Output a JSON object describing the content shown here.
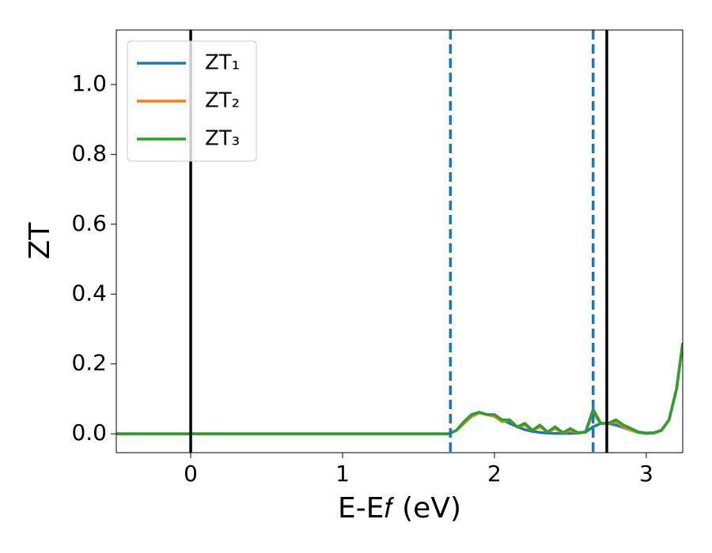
{
  "chart_data": {
    "type": "line",
    "x_label": "E-E𝑓 (eV)",
    "y_label": "ZT",
    "x": [
      -0.49,
      0,
      1,
      1.7,
      1.75,
      1.8,
      1.85,
      1.9,
      1.95,
      2.0,
      2.05,
      2.1,
      2.15,
      2.2,
      2.25,
      2.3,
      2.35,
      2.4,
      2.45,
      2.5,
      2.55,
      2.6,
      2.65,
      2.7,
      2.75,
      2.8,
      2.85,
      2.9,
      2.95,
      3.0,
      3.05,
      3.1,
      3.15,
      3.2,
      3.24
    ],
    "series": [
      {
        "name": "ZT₁",
        "color": "#1f77b4",
        "values": [
          0,
          0,
          0,
          0,
          0.01,
          0.03,
          0.05,
          0.06,
          0.055,
          0.05,
          0.04,
          0.03,
          0.02,
          0.012,
          0.007,
          0.004,
          0.002,
          0.001,
          0.001,
          0.001,
          0.002,
          0.005,
          0.02,
          0.03,
          0.03,
          0.025,
          0.018,
          0.01,
          0.004,
          0.001,
          0.002,
          0.01,
          0.04,
          0.13,
          0.26
        ]
      },
      {
        "name": "ZT₂",
        "color": "#ff7f0e",
        "values": [
          0,
          0,
          0,
          0,
          0.01,
          0.03,
          0.05,
          0.06,
          0.055,
          0.05,
          0.035,
          0.04,
          0.02,
          0.025,
          0.01,
          0.02,
          0.005,
          0.015,
          0.003,
          0.01,
          0.003,
          0.005,
          0.06,
          0.03,
          0.03,
          0.035,
          0.02,
          0.01,
          0.005,
          0.002,
          0.003,
          0.01,
          0.04,
          0.13,
          0.26
        ]
      },
      {
        "name": "ZT₃",
        "color": "#2ca02c",
        "values": [
          0,
          0,
          0,
          0,
          0.01,
          0.035,
          0.055,
          0.062,
          0.055,
          0.055,
          0.04,
          0.04,
          0.02,
          0.03,
          0.01,
          0.025,
          0.005,
          0.02,
          0.003,
          0.015,
          0.003,
          0.005,
          0.07,
          0.03,
          0.03,
          0.04,
          0.025,
          0.015,
          0.005,
          0.002,
          0.003,
          0.01,
          0.04,
          0.13,
          0.26
        ]
      }
    ],
    "vlines": [
      {
        "x": 0,
        "color": "#000000",
        "style": "solid"
      },
      {
        "x": 2.74,
        "color": "#000000",
        "style": "solid"
      },
      {
        "x": 1.71,
        "color": "#1f77b4",
        "style": "dashed"
      },
      {
        "x": 2.65,
        "color": "#1f77b4",
        "style": "dashed"
      }
    ],
    "xlim": [
      -0.49,
      3.24
    ],
    "xticks": [
      0,
      1,
      2,
      3
    ],
    "ylim": [
      -0.054,
      1.156
    ],
    "yticks": [
      {
        "value": 0,
        "label": "0.0"
      },
      {
        "value": 0.2,
        "label": "0.2"
      },
      {
        "value": 0.4,
        "label": "0.4"
      },
      {
        "value": 0.6,
        "label": "0.6"
      },
      {
        "value": 0.8,
        "label": "0.8"
      },
      {
        "value": 1,
        "label": "1.0"
      }
    ],
    "legend": "upper left",
    "grid": false
  }
}
